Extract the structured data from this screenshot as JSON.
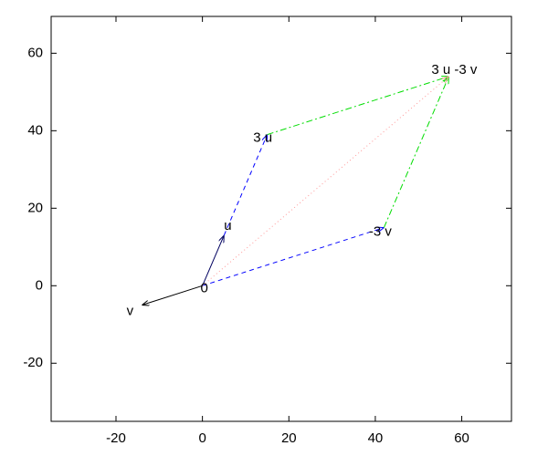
{
  "chart_data": {
    "type": "vector",
    "xlim": [
      -35,
      71.5
    ],
    "ylim": [
      -35,
      69.5
    ],
    "xticks": [
      -20,
      0,
      20,
      40,
      60
    ],
    "yticks": [
      -20,
      0,
      20,
      40,
      60
    ],
    "segments": [
      {
        "x": [
          0,
          5
        ],
        "y": [
          0,
          13
        ],
        "color": "#000060",
        "style": "solid"
      },
      {
        "x": [
          0,
          -14
        ],
        "y": [
          0,
          -5
        ],
        "color": "#000000",
        "style": "solid"
      },
      {
        "x": [
          5,
          15
        ],
        "y": [
          13,
          39
        ],
        "color": "#0000ff",
        "style": "dashed"
      },
      {
        "x": [
          0,
          42
        ],
        "y": [
          0,
          15
        ],
        "color": "#0000ff",
        "style": "dashed"
      },
      {
        "x": [
          15,
          57
        ],
        "y": [
          39,
          54
        ],
        "color": "#00dd00",
        "style": "dashdot"
      },
      {
        "x": [
          42,
          57
        ],
        "y": [
          15,
          54
        ],
        "color": "#00dd00",
        "style": "dashdot"
      },
      {
        "x": [
          0,
          57
        ],
        "y": [
          0,
          54
        ],
        "color": "#ff9999",
        "style": "dotted"
      }
    ],
    "points": [
      {
        "label": "0",
        "x": 0,
        "y": 0
      },
      {
        "label": "u",
        "x": 5,
        "y": 13
      },
      {
        "label": "v",
        "x": -14,
        "y": -5
      },
      {
        "label": "3 u",
        "x": 15,
        "y": 39
      },
      {
        "label": "-3 v",
        "x": 42,
        "y": 15
      },
      {
        "label": "3 u -3 v",
        "x": 57,
        "y": 54
      }
    ]
  }
}
